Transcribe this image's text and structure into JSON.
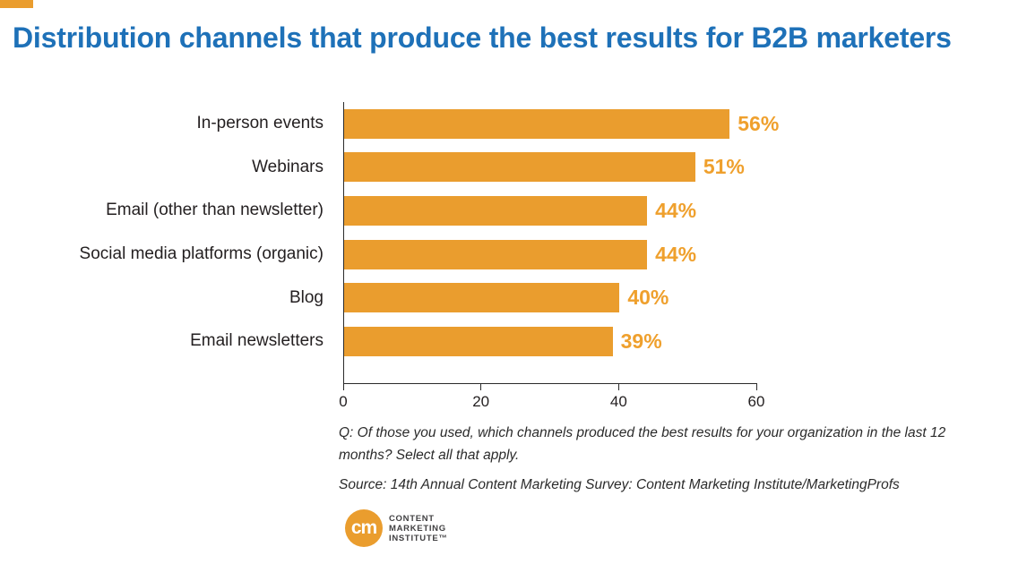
{
  "page": {
    "title": "Distribution channels that produce the best results for B2B marketers",
    "footnote": "Q: Of those you used, which channels produced the best results for your organization in the last 12 months? Select all that apply.",
    "source": "Source: 14th Annual Content Marketing Survey: Content Marketing Institute/MarketingProfs"
  },
  "logo": {
    "monogram": "cm",
    "lines": [
      "CONTENT",
      "MARKETING",
      "INSTITUTE™"
    ]
  },
  "colors": {
    "bar_orange": "#EA9D2E",
    "value_orange": "#EFA02D",
    "title_blue": "#1E71B8",
    "text_dark": "#231F20"
  },
  "chart_data": {
    "type": "bar",
    "orientation": "horizontal",
    "title": "Distribution channels that produce the best results for B2B marketers",
    "categories": [
      "In-person events",
      "Webinars",
      "Email (other than newsletter)",
      "Social media platforms (organic)",
      "Blog",
      "Email newsletters"
    ],
    "values": [
      56,
      51,
      44,
      44,
      40,
      39
    ],
    "value_labels": [
      "56%",
      "51%",
      "44%",
      "44%",
      "40%",
      "39%"
    ],
    "xticks": [
      0,
      20,
      40,
      60
    ],
    "xlim": [
      0,
      60
    ],
    "xlabel": "",
    "ylabel": "",
    "grid": false,
    "legend": false
  }
}
